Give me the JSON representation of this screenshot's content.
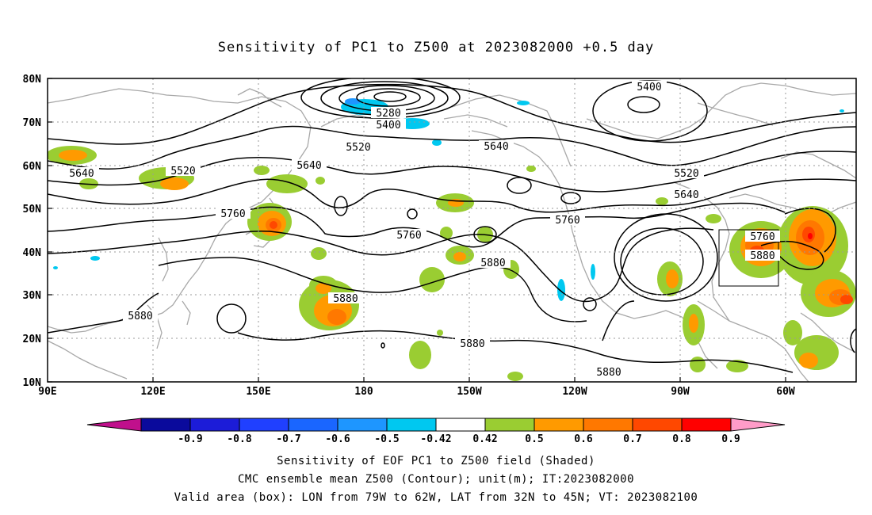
{
  "title": "Sensitivity of PC1 to Z500 at 2023082000 +0.5 day",
  "map": {
    "lat_ticks": [
      "80N",
      "70N",
      "60N",
      "50N",
      "40N",
      "30N",
      "20N",
      "10N"
    ],
    "lon_ticks": [
      "90E",
      "120E",
      "150E",
      "180",
      "150W",
      "120W",
      "90W",
      "60W"
    ],
    "contour_labels": [
      "5400",
      "5280",
      "5400",
      "5520",
      "5640",
      "5640",
      "5520",
      "5640",
      "5520",
      "5640",
      "5760",
      "5760",
      "5760",
      "5760",
      "5880",
      "5880",
      "5880",
      "5880",
      "5880",
      "5880"
    ],
    "valid_box": {
      "lon_from": "79W",
      "lon_to": "62W",
      "lat_from": "32N",
      "lat_to": "45N"
    }
  },
  "colorbar": {
    "labels": [
      "-0.9",
      "-0.8",
      "-0.7",
      "-0.6",
      "-0.5",
      "-0.42",
      "0.42",
      "0.5",
      "0.6",
      "0.7",
      "0.8",
      "0.9"
    ],
    "colors": {
      "low_arrow": "#c0108c",
      "bins": [
        "#0a0a9c",
        "#1c1cd8",
        "#2040ff",
        "#1a66ff",
        "#1e96ff",
        "#00c8f0",
        "#ffffff",
        "#9acd32",
        "#ff9a00",
        "#ff7800",
        "#ff4800",
        "#ff0000"
      ],
      "high_arrow": "#ff9cc8"
    }
  },
  "captions": {
    "line1": "Sensitivity of EOF PC1 to Z500 field (Shaded)",
    "line2": "CMC ensemble mean Z500 (Contour); unit(m); IT:2023082000",
    "line3": "Valid area (box): LON from 79W to 62W, LAT from 32N to 45N; VT: 2023082100"
  }
}
